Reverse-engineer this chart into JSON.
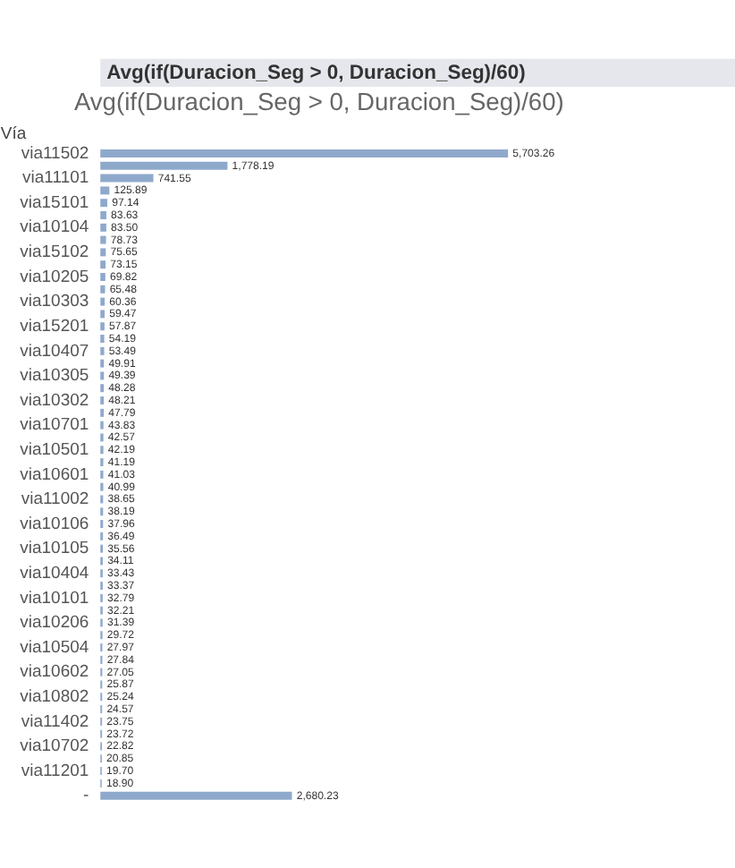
{
  "chart_data": {
    "type": "bar",
    "orientation": "horizontal",
    "title": "Avg(if(Duracion_Seg > 0, Duracion_Seg)/60)",
    "subtitle": "Avg(if(Duracion_Seg > 0, Duracion_Seg)/60)",
    "ylabel": "Vía",
    "categories": [
      "via11502",
      null,
      "via11101",
      null,
      "via15101",
      null,
      "via10104",
      null,
      "via15102",
      null,
      "via10205",
      null,
      "via10303",
      null,
      "via15201",
      null,
      "via10407",
      null,
      "via10305",
      null,
      "via10302",
      null,
      "via10701",
      null,
      "via10501",
      null,
      "via10601",
      null,
      "via11002",
      null,
      "via10106",
      null,
      "via10105",
      null,
      "via10404",
      null,
      "via10101",
      null,
      "via10206",
      null,
      "via10504",
      null,
      "via10602",
      null,
      "via10802",
      null,
      "via11402",
      null,
      "via10702",
      null,
      "via11201",
      null,
      "-"
    ],
    "values": [
      5703.26,
      1778.19,
      741.55,
      125.89,
      97.14,
      83.63,
      83.5,
      78.73,
      75.65,
      73.15,
      69.82,
      65.48,
      60.36,
      59.47,
      57.87,
      54.19,
      53.49,
      49.91,
      49.39,
      48.28,
      48.21,
      47.79,
      43.83,
      42.57,
      42.19,
      41.19,
      41.03,
      40.99,
      38.65,
      38.19,
      37.96,
      36.49,
      35.56,
      34.11,
      33.43,
      33.37,
      32.79,
      32.21,
      31.39,
      29.72,
      27.97,
      27.84,
      27.05,
      25.87,
      25.24,
      24.57,
      23.75,
      23.72,
      22.82,
      20.85,
      19.7,
      18.9,
      2680.23
    ],
    "value_labels": [
      "5,703.26",
      "1,778.19",
      "741.55",
      "125.89",
      "97.14",
      "83.63",
      "83.50",
      "78.73",
      "75.65",
      "73.15",
      "69.82",
      "65.48",
      "60.36",
      "59.47",
      "57.87",
      "54.19",
      "53.49",
      "49.91",
      "49.39",
      "48.28",
      "48.21",
      "47.79",
      "43.83",
      "42.57",
      "42.19",
      "41.19",
      "41.03",
      "40.99",
      "38.65",
      "38.19",
      "37.96",
      "36.49",
      "35.56",
      "34.11",
      "33.43",
      "33.37",
      "32.79",
      "32.21",
      "31.39",
      "29.72",
      "27.97",
      "27.84",
      "27.05",
      "25.87",
      "25.24",
      "24.57",
      "23.75",
      "23.72",
      "22.82",
      "20.85",
      "19.70",
      "18.90",
      "2,680.23"
    ],
    "color": "#8fa9cc"
  }
}
